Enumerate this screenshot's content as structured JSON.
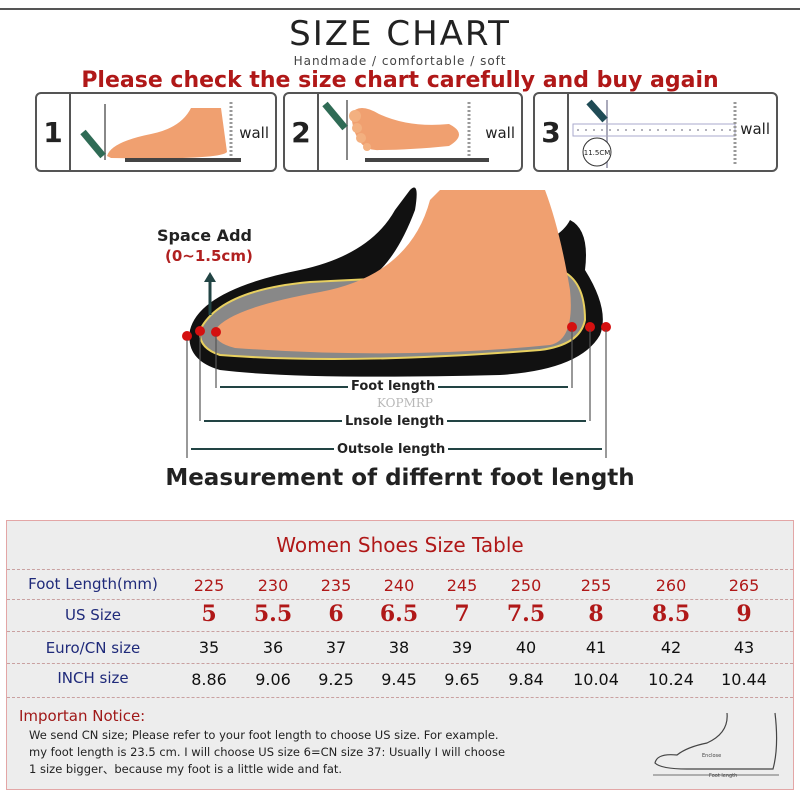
{
  "header": {
    "title": "SIZE CHART",
    "subtitle": "Handmade / comfortable / soft",
    "warning": "Please check the size chart carefully and buy again"
  },
  "steps": [
    {
      "number": "1",
      "wall_label": "wall"
    },
    {
      "number": "2",
      "wall_label": "wall"
    },
    {
      "number": "3",
      "wall_label": "wall",
      "ruler_label": "11.5CM"
    }
  ],
  "diagram": {
    "space_add": "Space Add",
    "space_range": "(0~1.5cm)",
    "foot_length": "Foot length",
    "insole_length": "Lnsole length",
    "outsole_length": "Outsole length",
    "watermark": "KOPMRP",
    "caption": "Measurement of differnt foot length"
  },
  "table": {
    "title": "Women Shoes Size Table",
    "rows": [
      {
        "label": "Foot Length(mm)",
        "values": [
          "225",
          "230",
          "235",
          "240",
          "245",
          "250",
          "255",
          "260",
          "265"
        ]
      },
      {
        "label": "US Size",
        "values": [
          "5",
          "5.5",
          "6",
          "6.5",
          "7",
          "7.5",
          "8",
          "8.5",
          "9"
        ]
      },
      {
        "label": "Euro/CN size",
        "values": [
          "35",
          "36",
          "37",
          "38",
          "39",
          "40",
          "41",
          "42",
          "43"
        ]
      },
      {
        "label": "INCH size",
        "values": [
          "8.86",
          "9.06",
          "9.25",
          "9.45",
          "9.65",
          "9.84",
          "10.04",
          "10.24",
          "10.44"
        ]
      }
    ]
  },
  "notice": {
    "title": "Importan Notice:",
    "lines": [
      "We send CN size; Please refer to your foot length to choose US size. For example.",
      "my foot length is 23.5 cm.  I will choose US size 6=CN size 37: Usually I will choose",
      "1 size bigger、because my foot is a little wide and fat."
    ],
    "figure_labels": {
      "enclose": "Enclose",
      "foot_length": "Foot length"
    }
  },
  "colors": {
    "accent_red": "#b01818",
    "label_blue": "#1f2a7a",
    "skin": "#f0a070",
    "table_bg": "#ededed"
  }
}
